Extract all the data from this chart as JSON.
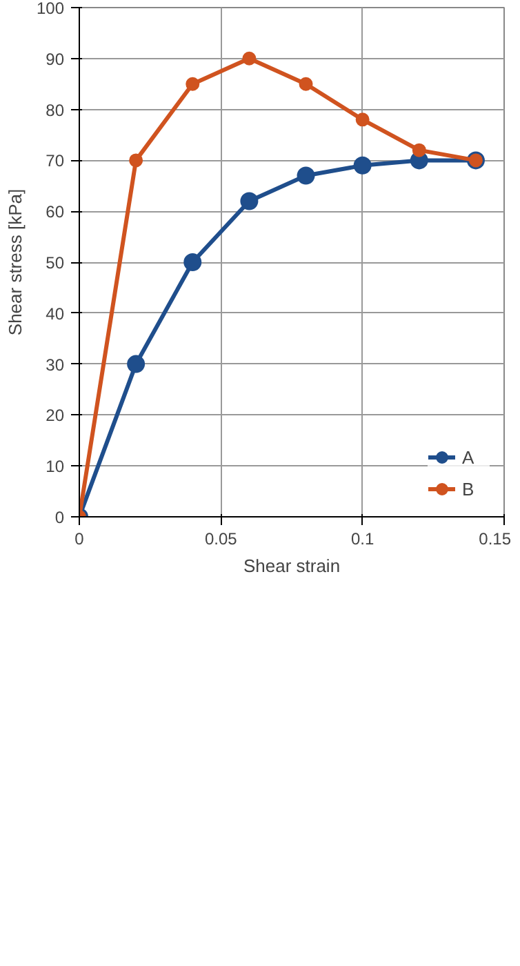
{
  "chart_data": {
    "type": "line",
    "xlabel": "Shear strain",
    "ylabel": "Shear stress [kPa]",
    "xlim": [
      0,
      0.15
    ],
    "xticks": [
      0,
      0.05,
      0.1,
      0.15
    ],
    "ylim": [
      0,
      100
    ],
    "yticks": [
      0,
      10,
      20,
      30,
      40,
      50,
      60,
      70,
      80,
      90,
      100
    ],
    "grid": true,
    "legend": "bottom right",
    "marker": "circle",
    "line_style": "solid",
    "series": [
      {
        "name": "A",
        "color": "#1f4e8c",
        "x": [
          0,
          0.02,
          0.04,
          0.06,
          0.08,
          0.1,
          0.12,
          0.14
        ],
        "values": [
          0,
          30,
          50,
          62,
          67,
          69,
          70,
          70
        ]
      },
      {
        "name": "B",
        "color": "#d0531f",
        "x": [
          0,
          0.02,
          0.04,
          0.06,
          0.08,
          0.1,
          0.12,
          0.14
        ],
        "values": [
          0,
          70,
          85,
          90,
          85,
          78,
          72,
          70
        ]
      }
    ]
  }
}
